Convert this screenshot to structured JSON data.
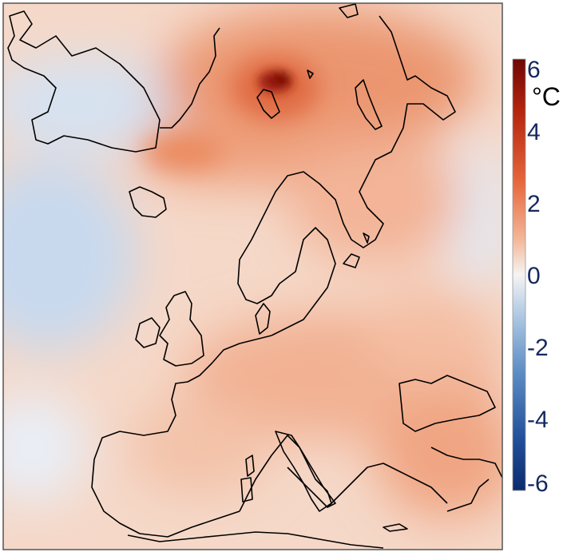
{
  "colorbar": {
    "unit": "°C",
    "ticks": [
      {
        "value": 6,
        "label": "6"
      },
      {
        "value": 4,
        "label": "4"
      },
      {
        "value": 2,
        "label": "2"
      },
      {
        "value": 0,
        "label": "0"
      },
      {
        "value": -2,
        "label": "-2"
      },
      {
        "value": -4,
        "label": "-4"
      },
      {
        "value": -6,
        "label": "-6"
      }
    ],
    "range": [
      -6,
      6
    ],
    "colors": [
      "#0b2a6e",
      "#3a6fb3",
      "#a9c4e0",
      "#f6f4f3",
      "#f3b89a",
      "#e5653a",
      "#7a0a0a"
    ]
  },
  "map": {
    "region": "Europe and North Atlantic",
    "coastline_color": "#000000",
    "colors": {
      "warm_light": "#f6cdb6",
      "warm": "#ee9a74",
      "warm_strong": "#e4683f",
      "hot": "#8a1208",
      "cool": "#c9dbee",
      "neutral": "#f7f1ee"
    }
  }
}
